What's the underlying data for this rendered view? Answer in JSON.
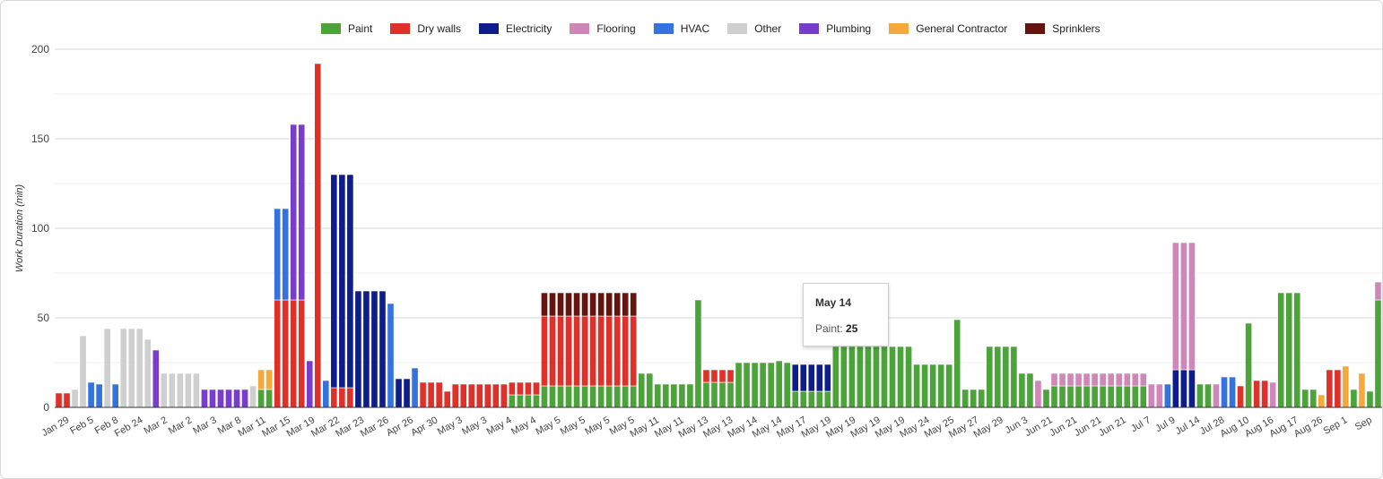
{
  "chart_data": {
    "type": "bar",
    "stacked": true,
    "ylabel": "Work Duration (min)",
    "xlabel": "",
    "ylim": [
      0,
      200
    ],
    "yticks": [
      0,
      50,
      100,
      150,
      200
    ],
    "grid": true,
    "legend_position": "top",
    "series": [
      {
        "name": "Paint",
        "color": "#4ba33a"
      },
      {
        "name": "Dry walls",
        "color": "#e0302a"
      },
      {
        "name": "Electricity",
        "color": "#0f1c8c"
      },
      {
        "name": "Flooring",
        "color": "#cf86b8"
      },
      {
        "name": "HVAC",
        "color": "#3472e0"
      },
      {
        "name": "Other",
        "color": "#cfcfcf"
      },
      {
        "name": "Plumbing",
        "color": "#7a3ccc"
      },
      {
        "name": "General Contractor",
        "color": "#f6a83a"
      },
      {
        "name": "Sprinklers",
        "color": "#641510"
      }
    ],
    "x_tick_labels": [
      "Jan 29",
      "Feb 5",
      "Feb 8",
      "Feb 24",
      "Mar 2",
      "Mar 2",
      "Mar 3",
      "Mar 8",
      "Mar 11",
      "Mar 15",
      "Mar 19",
      "Mar 22",
      "Mar 23",
      "Mar 26",
      "Apr 26",
      "Apr 30",
      "May 3",
      "May 3",
      "May 4",
      "May 4",
      "May 5",
      "May 5",
      "May 5",
      "May 5",
      "May 11",
      "May 11",
      "May 13",
      "May 13",
      "May 14",
      "May 14",
      "May 17",
      "May 19",
      "May 19",
      "May 19",
      "May 19",
      "May 24",
      "May 25",
      "May 27",
      "May 29",
      "Jun 3",
      "Jun 21",
      "Jun 21",
      "Jun 21",
      "Jun 21",
      "Jul 7",
      "Jul 9",
      "Jul 14",
      "Jul 28",
      "Aug 10",
      "Aug 16",
      "Aug 17",
      "Aug 26",
      "Sep 1",
      "Sep"
    ],
    "bars": [
      [
        [
          1,
          8
        ]
      ],
      [
        [
          1,
          8
        ]
      ],
      [
        [
          5,
          10
        ]
      ],
      [
        [
          5,
          40
        ]
      ],
      [
        [
          4,
          14
        ]
      ],
      [
        [
          4,
          13
        ]
      ],
      [
        [
          5,
          44
        ]
      ],
      [
        [
          4,
          13
        ]
      ],
      [
        [
          5,
          44
        ]
      ],
      [
        [
          5,
          44
        ]
      ],
      [
        [
          5,
          44
        ]
      ],
      [
        [
          5,
          38
        ]
      ],
      [
        [
          6,
          32
        ]
      ],
      [
        [
          5,
          19
        ]
      ],
      [
        [
          5,
          19
        ]
      ],
      [
        [
          5,
          19
        ]
      ],
      [
        [
          5,
          19
        ]
      ],
      [
        [
          5,
          19
        ]
      ],
      [
        [
          6,
          10
        ]
      ],
      [
        [
          6,
          10
        ]
      ],
      [
        [
          6,
          10
        ]
      ],
      [
        [
          6,
          10
        ]
      ],
      [
        [
          6,
          10
        ]
      ],
      [
        [
          6,
          10
        ]
      ],
      [
        [
          5,
          12
        ]
      ],
      [
        [
          0,
          10
        ],
        [
          7,
          11
        ]
      ],
      [
        [
          0,
          10
        ],
        [
          7,
          11
        ]
      ],
      [
        [
          1,
          60
        ],
        [
          4,
          51
        ]
      ],
      [
        [
          1,
          60
        ],
        [
          4,
          51
        ]
      ],
      [
        [
          1,
          60
        ],
        [
          6,
          98
        ]
      ],
      [
        [
          1,
          60
        ],
        [
          6,
          98
        ]
      ],
      [
        [
          6,
          26
        ]
      ],
      [
        [
          1,
          192
        ]
      ],
      [
        [
          4,
          15
        ]
      ],
      [
        [
          1,
          11
        ],
        [
          2,
          119
        ]
      ],
      [
        [
          1,
          11
        ],
        [
          2,
          119
        ]
      ],
      [
        [
          1,
          11
        ],
        [
          2,
          119
        ]
      ],
      [
        [
          2,
          65
        ]
      ],
      [
        [
          2,
          65
        ]
      ],
      [
        [
          2,
          65
        ]
      ],
      [
        [
          2,
          65
        ]
      ],
      [
        [
          4,
          58
        ]
      ],
      [
        [
          2,
          16
        ]
      ],
      [
        [
          2,
          16
        ]
      ],
      [
        [
          4,
          22
        ]
      ],
      [
        [
          1,
          14
        ]
      ],
      [
        [
          1,
          14
        ]
      ],
      [
        [
          1,
          14
        ]
      ],
      [
        [
          1,
          9
        ]
      ],
      [
        [
          1,
          13
        ]
      ],
      [
        [
          1,
          13
        ]
      ],
      [
        [
          1,
          13
        ]
      ],
      [
        [
          1,
          13
        ]
      ],
      [
        [
          1,
          13
        ]
      ],
      [
        [
          1,
          13
        ]
      ],
      [
        [
          1,
          13
        ]
      ],
      [
        [
          0,
          7
        ],
        [
          1,
          7
        ]
      ],
      [
        [
          0,
          7
        ],
        [
          1,
          7
        ]
      ],
      [
        [
          0,
          7
        ],
        [
          1,
          7
        ]
      ],
      [
        [
          0,
          7
        ],
        [
          1,
          7
        ]
      ],
      [
        [
          0,
          12
        ],
        [
          1,
          39
        ],
        [
          8,
          13
        ]
      ],
      [
        [
          0,
          12
        ],
        [
          1,
          39
        ],
        [
          8,
          13
        ]
      ],
      [
        [
          0,
          12
        ],
        [
          1,
          39
        ],
        [
          8,
          13
        ]
      ],
      [
        [
          0,
          12
        ],
        [
          1,
          39
        ],
        [
          8,
          13
        ]
      ],
      [
        [
          0,
          12
        ],
        [
          1,
          39
        ],
        [
          8,
          13
        ]
      ],
      [
        [
          0,
          12
        ],
        [
          1,
          39
        ],
        [
          8,
          13
        ]
      ],
      [
        [
          0,
          12
        ],
        [
          1,
          39
        ],
        [
          8,
          13
        ]
      ],
      [
        [
          0,
          12
        ],
        [
          1,
          39
        ],
        [
          8,
          13
        ]
      ],
      [
        [
          0,
          12
        ],
        [
          1,
          39
        ],
        [
          8,
          13
        ]
      ],
      [
        [
          0,
          12
        ],
        [
          1,
          39
        ],
        [
          8,
          13
        ]
      ],
      [
        [
          0,
          12
        ],
        [
          1,
          39
        ],
        [
          8,
          13
        ]
      ],
      [
        [
          0,
          12
        ],
        [
          1,
          39
        ],
        [
          8,
          13
        ]
      ],
      [
        [
          0,
          19
        ]
      ],
      [
        [
          0,
          19
        ]
      ],
      [
        [
          0,
          13
        ]
      ],
      [
        [
          0,
          13
        ]
      ],
      [
        [
          0,
          13
        ]
      ],
      [
        [
          0,
          13
        ]
      ],
      [
        [
          0,
          13
        ]
      ],
      [
        [
          0,
          60
        ]
      ],
      [
        [
          0,
          14
        ],
        [
          1,
          7
        ]
      ],
      [
        [
          0,
          14
        ],
        [
          1,
          7
        ]
      ],
      [
        [
          0,
          14
        ],
        [
          1,
          7
        ]
      ],
      [
        [
          0,
          14
        ],
        [
          1,
          7
        ]
      ],
      [
        [
          0,
          25
        ]
      ],
      [
        [
          0,
          25
        ]
      ],
      [
        [
          0,
          25
        ]
      ],
      [
        [
          0,
          25
        ]
      ],
      [
        [
          0,
          25
        ]
      ],
      [
        [
          0,
          26
        ]
      ],
      [
        [
          0,
          25
        ]
      ],
      [
        [
          0,
          9
        ],
        [
          2,
          15
        ]
      ],
      [
        [
          0,
          9
        ],
        [
          2,
          15
        ]
      ],
      [
        [
          0,
          9
        ],
        [
          2,
          15
        ]
      ],
      [
        [
          0,
          9
        ],
        [
          2,
          15
        ]
      ],
      [
        [
          0,
          9
        ],
        [
          2,
          15
        ]
      ],
      [
        [
          0,
          34
        ]
      ],
      [
        [
          0,
          34
        ]
      ],
      [
        [
          0,
          34
        ]
      ],
      [
        [
          0,
          34
        ]
      ],
      [
        [
          0,
          34
        ]
      ],
      [
        [
          0,
          34
        ]
      ],
      [
        [
          0,
          34
        ]
      ],
      [
        [
          0,
          34
        ]
      ],
      [
        [
          0,
          34
        ]
      ],
      [
        [
          0,
          34
        ]
      ],
      [
        [
          0,
          24
        ]
      ],
      [
        [
          0,
          24
        ]
      ],
      [
        [
          0,
          24
        ]
      ],
      [
        [
          0,
          24
        ]
      ],
      [
        [
          0,
          24
        ]
      ],
      [
        [
          0,
          49
        ]
      ],
      [
        [
          0,
          10
        ]
      ],
      [
        [
          0,
          10
        ]
      ],
      [
        [
          0,
          10
        ]
      ],
      [
        [
          0,
          34
        ]
      ],
      [
        [
          0,
          34
        ]
      ],
      [
        [
          0,
          34
        ]
      ],
      [
        [
          0,
          34
        ]
      ],
      [
        [
          0,
          19
        ]
      ],
      [
        [
          0,
          19
        ]
      ],
      [
        [
          3,
          15
        ]
      ],
      [
        [
          0,
          10
        ]
      ],
      [
        [
          0,
          12
        ],
        [
          3,
          7
        ]
      ],
      [
        [
          0,
          12
        ],
        [
          3,
          7
        ]
      ],
      [
        [
          0,
          12
        ],
        [
          3,
          7
        ]
      ],
      [
        [
          0,
          12
        ],
        [
          3,
          7
        ]
      ],
      [
        [
          0,
          12
        ],
        [
          3,
          7
        ]
      ],
      [
        [
          0,
          12
        ],
        [
          3,
          7
        ]
      ],
      [
        [
          0,
          12
        ],
        [
          3,
          7
        ]
      ],
      [
        [
          0,
          12
        ],
        [
          3,
          7
        ]
      ],
      [
        [
          0,
          12
        ],
        [
          3,
          7
        ]
      ],
      [
        [
          0,
          12
        ],
        [
          3,
          7
        ]
      ],
      [
        [
          0,
          12
        ],
        [
          3,
          7
        ]
      ],
      [
        [
          0,
          12
        ],
        [
          3,
          7
        ]
      ],
      [
        [
          3,
          13
        ]
      ],
      [
        [
          3,
          13
        ]
      ],
      [
        [
          4,
          13
        ]
      ],
      [
        [
          2,
          21
        ],
        [
          3,
          71
        ]
      ],
      [
        [
          2,
          21
        ],
        [
          3,
          71
        ]
      ],
      [
        [
          2,
          21
        ],
        [
          3,
          71
        ]
      ],
      [
        [
          0,
          13
        ]
      ],
      [
        [
          0,
          13
        ]
      ],
      [
        [
          3,
          13
        ]
      ],
      [
        [
          4,
          17
        ]
      ],
      [
        [
          4,
          17
        ]
      ],
      [
        [
          1,
          12
        ]
      ],
      [
        [
          0,
          47
        ]
      ],
      [
        [
          1,
          15
        ]
      ],
      [
        [
          1,
          15
        ]
      ],
      [
        [
          3,
          14
        ]
      ],
      [
        [
          0,
          64
        ]
      ],
      [
        [
          0,
          64
        ]
      ],
      [
        [
          0,
          64
        ]
      ],
      [
        [
          0,
          10
        ]
      ],
      [
        [
          0,
          10
        ]
      ],
      [
        [
          7,
          7
        ]
      ],
      [
        [
          1,
          21
        ]
      ],
      [
        [
          1,
          21
        ]
      ],
      [
        [
          7,
          23
        ]
      ],
      [
        [
          0,
          10
        ]
      ],
      [
        [
          7,
          19
        ]
      ],
      [
        [
          0,
          9
        ]
      ],
      [
        [
          0,
          60
        ],
        [
          3,
          10
        ]
      ]
    ]
  },
  "tooltip": {
    "title": "May 14",
    "series": "Paint",
    "value": "25",
    "separator": ": "
  }
}
